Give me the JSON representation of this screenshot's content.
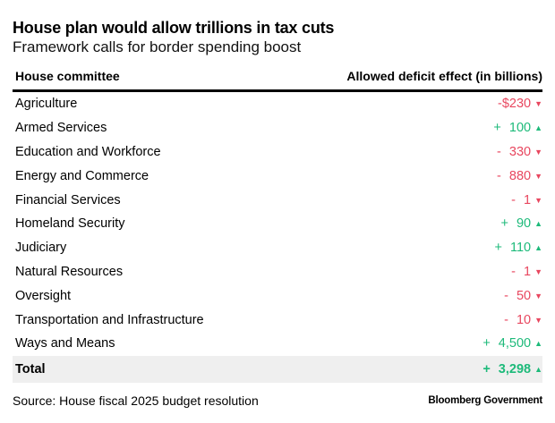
{
  "title": "House plan would allow trillions in tax cuts",
  "subtitle": "Framework calls for border spending boost",
  "chart_data": {
    "type": "table",
    "columns": [
      "House committee",
      "Allowed deficit effect (in billions)"
    ],
    "rows": [
      {
        "committee": "Agriculture",
        "sign": "",
        "display": "-$230",
        "value": -230,
        "direction": "down"
      },
      {
        "committee": "Armed Services",
        "sign": "+",
        "display": "100",
        "value": 100,
        "direction": "up"
      },
      {
        "committee": "Education and Workforce",
        "sign": "-",
        "display": "330",
        "value": -330,
        "direction": "down"
      },
      {
        "committee": "Energy and Commerce",
        "sign": "-",
        "display": "880",
        "value": -880,
        "direction": "down"
      },
      {
        "committee": "Financial Services",
        "sign": "-",
        "display": "1",
        "value": -1,
        "direction": "down"
      },
      {
        "committee": "Homeland Security",
        "sign": "+",
        "display": "90",
        "value": 90,
        "direction": "up"
      },
      {
        "committee": "Judiciary",
        "sign": "+",
        "display": "110",
        "value": 110,
        "direction": "up"
      },
      {
        "committee": "Natural Resources",
        "sign": "-",
        "display": "1",
        "value": -1,
        "direction": "down"
      },
      {
        "committee": "Oversight",
        "sign": "-",
        "display": "50",
        "value": -50,
        "direction": "down"
      },
      {
        "committee": "Transportation and Infrastructure",
        "sign": "-",
        "display": "10",
        "value": -10,
        "direction": "down"
      },
      {
        "committee": "Ways and Means",
        "sign": "+",
        "display": "4,500",
        "value": 4500,
        "direction": "up"
      }
    ],
    "total": {
      "label": "Total",
      "sign": "+",
      "display": "3,298",
      "value": 3298,
      "direction": "up"
    },
    "colors": {
      "negative": "#e8475f",
      "positive": "#1dba7a",
      "total_bg": "#efefef"
    }
  },
  "icons": {
    "up": "▲",
    "down": "▼"
  },
  "footer": {
    "source": "Source: House fiscal 2025 budget resolution",
    "brand": "Bloomberg Government"
  }
}
